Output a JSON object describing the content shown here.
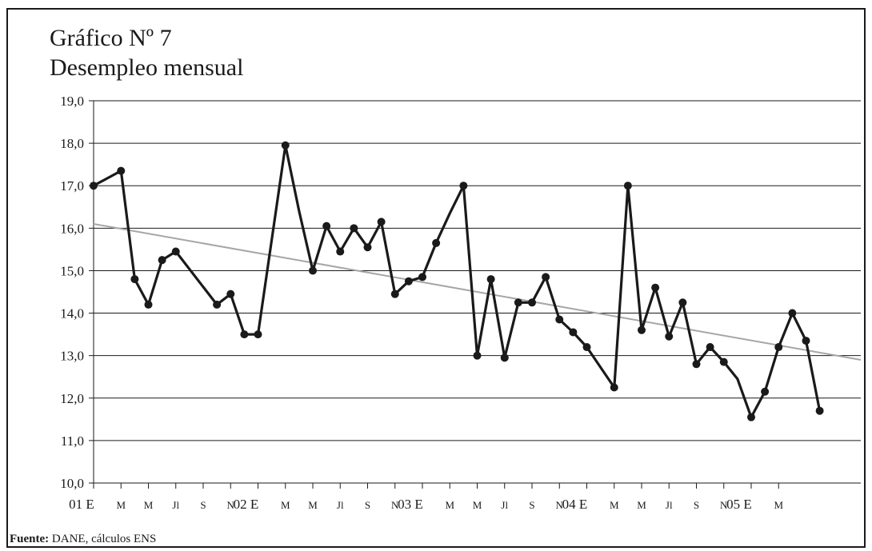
{
  "title": "Gráfico Nº 7",
  "subtitle": "Desempleo mensual",
  "source": {
    "label": "Fuente:",
    "text": " DANE, cálculos ENS"
  },
  "colors": {
    "series": "#1a1a1a",
    "trend": "#a6a6a6",
    "grid": "#1a1a1a"
  },
  "chart_data": {
    "type": "line",
    "title": "Gráfico Nº 7",
    "subtitle": "Desempleo mensual",
    "xlabel": "",
    "ylabel": "",
    "ylim": [
      10.0,
      19.0
    ],
    "yticks": [
      "10,0",
      "11,0",
      "12,0",
      "13,0",
      "14,0",
      "15,0",
      "16,0",
      "17,0",
      "18,0",
      "19,0"
    ],
    "xlim": [
      0,
      56
    ],
    "grid": "horizontal",
    "legend": "none",
    "xtick_labels": [
      {
        "x": 0,
        "label": "01 E",
        "big": true
      },
      {
        "x": 2,
        "label": "M",
        "big": false
      },
      {
        "x": 4,
        "label": "M",
        "big": false
      },
      {
        "x": 6,
        "label": "Jl",
        "big": false
      },
      {
        "x": 8,
        "label": "S",
        "big": false
      },
      {
        "x": 10,
        "label": "N",
        "big": false
      },
      {
        "x": 12,
        "label": "02 E",
        "big": true
      },
      {
        "x": 14,
        "label": "M",
        "big": false
      },
      {
        "x": 16,
        "label": "M",
        "big": false
      },
      {
        "x": 18,
        "label": "Jl",
        "big": false
      },
      {
        "x": 20,
        "label": "S",
        "big": false
      },
      {
        "x": 22,
        "label": "N",
        "big": false
      },
      {
        "x": 24,
        "label": "03 E",
        "big": true
      },
      {
        "x": 26,
        "label": "M",
        "big": false
      },
      {
        "x": 28,
        "label": "M",
        "big": false
      },
      {
        "x": 30,
        "label": "Jl",
        "big": false
      },
      {
        "x": 32,
        "label": "S",
        "big": false
      },
      {
        "x": 34,
        "label": "N",
        "big": false
      },
      {
        "x": 36,
        "label": "04 E",
        "big": true
      },
      {
        "x": 38,
        "label": "M",
        "big": false
      },
      {
        "x": 40,
        "label": "M",
        "big": false
      },
      {
        "x": 42,
        "label": "Jl",
        "big": false
      },
      {
        "x": 44,
        "label": "S",
        "big": false
      },
      {
        "x": 46,
        "label": "N",
        "big": false
      },
      {
        "x": 48,
        "label": "05 E",
        "big": true
      },
      {
        "x": 50,
        "label": "M",
        "big": false
      }
    ],
    "series": [
      {
        "points": [
          [
            0,
            17.0
          ],
          [
            2,
            17.35
          ],
          [
            3,
            14.8
          ],
          [
            4,
            14.2
          ],
          [
            5,
            15.25
          ],
          [
            6,
            15.45
          ],
          [
            9,
            14.2
          ],
          [
            10,
            14.45
          ],
          [
            11,
            13.5
          ],
          [
            12,
            13.5
          ],
          [
            14,
            17.95
          ],
          [
            15,
            16.4
          ],
          [
            16,
            15.0
          ],
          [
            17,
            16.05
          ],
          [
            18,
            15.45
          ],
          [
            19,
            16.0
          ],
          [
            20,
            15.55
          ],
          [
            21,
            16.15
          ],
          [
            22,
            14.45
          ],
          [
            23,
            14.75
          ],
          [
            24,
            14.85
          ],
          [
            25,
            15.65
          ],
          [
            26,
            16.35
          ],
          [
            27,
            17.0
          ],
          [
            28,
            13.0
          ],
          [
            29,
            14.8
          ],
          [
            30,
            12.95
          ],
          [
            31,
            14.25
          ],
          [
            32,
            14.25
          ],
          [
            33,
            14.85
          ],
          [
            34,
            13.85
          ],
          [
            35,
            13.55
          ],
          [
            36,
            13.2
          ],
          [
            38,
            12.25
          ],
          [
            39,
            17.0
          ],
          [
            40,
            13.6
          ],
          [
            41,
            14.6
          ],
          [
            42,
            13.45
          ],
          [
            43,
            14.25
          ],
          [
            44,
            12.8
          ],
          [
            45,
            13.2
          ],
          [
            46,
            12.85
          ],
          [
            47,
            12.45
          ],
          [
            48,
            11.55
          ],
          [
            49,
            12.15
          ],
          [
            50,
            13.2
          ],
          [
            51,
            14.0
          ],
          [
            52,
            13.35
          ],
          [
            53,
            11.7
          ]
        ],
        "markers": [
          true,
          true,
          true,
          true,
          true,
          true,
          true,
          true,
          true,
          true,
          true,
          false,
          true,
          true,
          true,
          true,
          true,
          true,
          true,
          true,
          true,
          true,
          false,
          true,
          true,
          true,
          true,
          true,
          true,
          true,
          true,
          true,
          true,
          true,
          true,
          true,
          true,
          true,
          true,
          true,
          true,
          true,
          false,
          true,
          true,
          true,
          true,
          true,
          true
        ]
      }
    ],
    "trendline": {
      "x": [
        0,
        56
      ],
      "y": [
        16.1,
        12.9
      ]
    }
  }
}
